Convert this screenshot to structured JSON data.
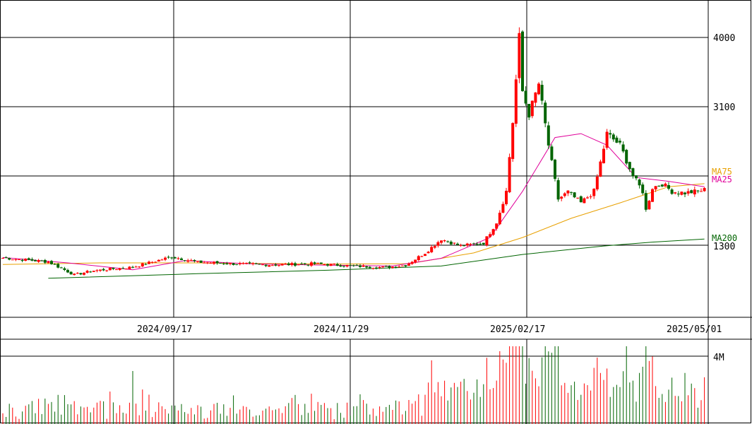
{
  "chart_data": {
    "type": "candlestick",
    "x_ticks": [
      "2024/09/17",
      "2024/11/29",
      "2025/02/17",
      "2025/05/01"
    ],
    "y_ticks": [
      {
        "label": "4000",
        "value": 4000
      },
      {
        "label": "3100",
        "value": 3100
      },
      {
        "label": "1300",
        "value": 1300
      }
    ],
    "volume_ticks": [
      {
        "label": "4M",
        "value": 4000000
      }
    ],
    "ma_labels": [
      {
        "name": "MA75",
        "color": "#e8a000"
      },
      {
        "name": "MA25",
        "color": "#e0009a"
      },
      {
        "name": "MA200",
        "color": "#006400"
      }
    ],
    "colors": {
      "up": "#ff0000",
      "down": "#006400",
      "grid": "#000000"
    },
    "key_points": [
      {
        "pos": 0,
        "price": 1135
      },
      {
        "pos": 14,
        "price": 1085
      },
      {
        "pos": 22,
        "price": 915
      },
      {
        "pos": 28,
        "price": 970
      },
      {
        "pos": 40,
        "price": 1015
      },
      {
        "pos": 52,
        "price": 1150
      },
      {
        "pos": 60,
        "price": 1080
      },
      {
        "pos": 72,
        "price": 1055
      },
      {
        "pos": 84,
        "price": 1045
      },
      {
        "pos": 96,
        "price": 1060
      },
      {
        "pos": 108,
        "price": 1030
      },
      {
        "pos": 118,
        "price": 1010
      },
      {
        "pos": 124,
        "price": 1040
      },
      {
        "pos": 130,
        "price": 1200
      },
      {
        "pos": 135,
        "price": 1380
      },
      {
        "pos": 141,
        "price": 1290
      },
      {
        "pos": 148,
        "price": 1330
      },
      {
        "pos": 152,
        "price": 1600
      },
      {
        "pos": 155,
        "price": 2000
      },
      {
        "pos": 157,
        "price": 2900
      },
      {
        "pos": 159,
        "price": 4000
      },
      {
        "pos": 160,
        "price": 3300
      },
      {
        "pos": 162,
        "price": 3000
      },
      {
        "pos": 165,
        "price": 3400
      },
      {
        "pos": 168,
        "price": 2600
      },
      {
        "pos": 171,
        "price": 1900
      },
      {
        "pos": 174,
        "price": 1990
      },
      {
        "pos": 178,
        "price": 1850
      },
      {
        "pos": 182,
        "price": 2000
      },
      {
        "pos": 186,
        "price": 2750
      },
      {
        "pos": 190,
        "price": 2600
      },
      {
        "pos": 194,
        "price": 2200
      },
      {
        "pos": 197,
        "price": 2000
      },
      {
        "pos": 198,
        "price": 1750
      },
      {
        "pos": 200,
        "price": 2050
      },
      {
        "pos": 203,
        "price": 2100
      },
      {
        "pos": 206,
        "price": 2000
      },
      {
        "pos": 210,
        "price": 1980
      },
      {
        "pos": 214,
        "price": 2000
      },
      {
        "pos": 216,
        "price": 2020
      }
    ],
    "ma25_points": [
      {
        "pos": 0,
        "price": 1140
      },
      {
        "pos": 20,
        "price": 1070
      },
      {
        "pos": 40,
        "price": 980
      },
      {
        "pos": 56,
        "price": 1100
      },
      {
        "pos": 75,
        "price": 1060
      },
      {
        "pos": 100,
        "price": 1040
      },
      {
        "pos": 120,
        "price": 1030
      },
      {
        "pos": 135,
        "price": 1130
      },
      {
        "pos": 150,
        "price": 1400
      },
      {
        "pos": 160,
        "price": 2000
      },
      {
        "pos": 170,
        "price": 2700
      },
      {
        "pos": 178,
        "price": 2750
      },
      {
        "pos": 186,
        "price": 2600
      },
      {
        "pos": 195,
        "price": 2180
      },
      {
        "pos": 205,
        "price": 2130
      },
      {
        "pos": 216,
        "price": 2060
      }
    ],
    "ma75_points": [
      {
        "pos": 0,
        "price": 1050
      },
      {
        "pos": 30,
        "price": 1070
      },
      {
        "pos": 60,
        "price": 1070
      },
      {
        "pos": 100,
        "price": 1055
      },
      {
        "pos": 125,
        "price": 1060
      },
      {
        "pos": 145,
        "price": 1200
      },
      {
        "pos": 160,
        "price": 1400
      },
      {
        "pos": 175,
        "price": 1650
      },
      {
        "pos": 190,
        "price": 1850
      },
      {
        "pos": 205,
        "price": 2060
      },
      {
        "pos": 216,
        "price": 2100
      }
    ],
    "ma200_points": [
      {
        "pos": 14,
        "price": 870
      },
      {
        "pos": 60,
        "price": 930
      },
      {
        "pos": 100,
        "price": 975
      },
      {
        "pos": 135,
        "price": 1030
      },
      {
        "pos": 160,
        "price": 1180
      },
      {
        "pos": 185,
        "price": 1290
      },
      {
        "pos": 200,
        "price": 1340
      },
      {
        "pos": 216,
        "price": 1380
      }
    ]
  }
}
